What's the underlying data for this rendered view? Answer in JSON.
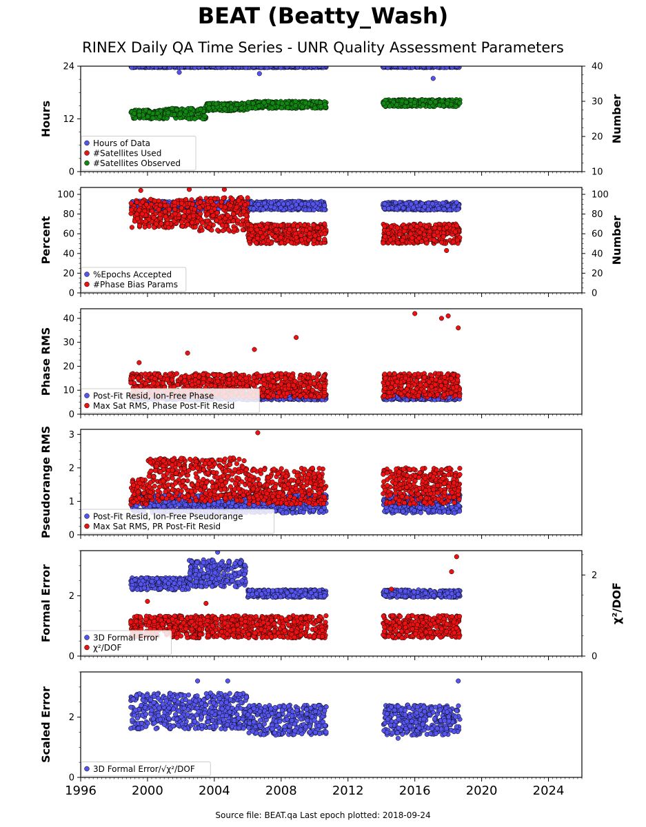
{
  "header": {
    "title": "BEAT (Beatty_Wash)",
    "subtitle": "RINEX Daily QA Time Series - UNR Quality Assessment Parameters"
  },
  "footer": {
    "text": "Source file: BEAT.qa Last epoch plotted: 2018-09-24"
  },
  "colors": {
    "blue": "#5555ee",
    "red": "#ee1111",
    "green": "#118811",
    "edge": "#000000"
  },
  "chart_data": [
    {
      "type": "scatter",
      "ylabel": "Hours",
      "ylabel_right": "Number",
      "ylim": [
        0,
        24
      ],
      "ylim_right": [
        10,
        40
      ],
      "yticks": [
        "0",
        "12",
        "24"
      ],
      "yticks_right": [
        "10",
        "20",
        "30",
        "40"
      ],
      "xlim": [
        1996,
        2026
      ],
      "legend_position": "lower-left",
      "series": [
        {
          "name": "Hours of Data",
          "color": "blue",
          "axis": "left",
          "segments": [
            {
              "x": [
                1999.0,
                2010.7
              ],
              "y": [
                23.7,
                24.0
              ]
            },
            {
              "x": [
                2014.1,
                2018.7
              ],
              "y": [
                23.7,
                24.0
              ]
            }
          ],
          "outliers": [
            {
              "x": 2001.9,
              "y": 22.6
            },
            {
              "x": 2006.7,
              "y": 22.3
            },
            {
              "x": 2017.1,
              "y": 21.2
            }
          ]
        },
        {
          "name": "#Satellites Used",
          "color": "red",
          "axis": "left",
          "segments": [],
          "outliers": []
        },
        {
          "name": "#Satellites Observed",
          "color": "green",
          "axis": "right",
          "segments": [
            {
              "x": [
                1999.0,
                2001.0
              ],
              "y": [
                25.0,
                27.5
              ]
            },
            {
              "x": [
                2001.0,
                2003.5
              ],
              "y": [
                25.0,
                28.0
              ]
            },
            {
              "x": [
                2003.5,
                2006.0
              ],
              "y": [
                27.3,
                29.5
              ]
            },
            {
              "x": [
                2006.0,
                2010.7
              ],
              "y": [
                28.0,
                30.0
              ]
            },
            {
              "x": [
                2014.1,
                2018.7
              ],
              "y": [
                28.5,
                30.5
              ]
            }
          ],
          "outliers": []
        }
      ]
    },
    {
      "type": "scatter",
      "ylabel": "Percent",
      "ylabel_right": "Number",
      "ylim": [
        0,
        107
      ],
      "ylim_right": [
        0,
        107
      ],
      "yticks": [
        "0",
        "20",
        "40",
        "60",
        "80",
        "100"
      ],
      "yticks_right": [
        "0",
        "20",
        "40",
        "60",
        "80",
        "100"
      ],
      "xlim": [
        1996,
        2026
      ],
      "legend_position": "lower-left",
      "series": [
        {
          "name": "%Epochs Accepted",
          "color": "blue",
          "axis": "left",
          "segments": [
            {
              "x": [
                1999.0,
                2010.7
              ],
              "y": [
                84,
                93
              ]
            },
            {
              "x": [
                2014.1,
                2018.7
              ],
              "y": [
                84,
                92
              ]
            }
          ],
          "outliers": []
        },
        {
          "name": "#Phase Bias Params",
          "color": "red",
          "axis": "right",
          "segments": [
            {
              "x": [
                1999.0,
                2003.0
              ],
              "y": [
                66,
                95
              ]
            },
            {
              "x": [
                2003.0,
                2006.0
              ],
              "y": [
                62,
                97
              ]
            },
            {
              "x": [
                2006.0,
                2010.7
              ],
              "y": [
                50,
                70
              ]
            },
            {
              "x": [
                2014.1,
                2018.7
              ],
              "y": [
                50,
                70
              ]
            }
          ],
          "outliers": [
            {
              "x": 1999.6,
              "y": 104
            },
            {
              "x": 2002.5,
              "y": 105
            },
            {
              "x": 2004.6,
              "y": 105
            },
            {
              "x": 2017.9,
              "y": 43
            }
          ]
        }
      ]
    },
    {
      "type": "scatter",
      "ylabel": "Phase RMS",
      "ylim": [
        0,
        44
      ],
      "yticks": [
        "0",
        "10",
        "20",
        "30",
        "40"
      ],
      "xlim": [
        1996,
        2026
      ],
      "legend_position": "lower-left",
      "series": [
        {
          "name": "Post-Fit Resid, Ion-Free Phase",
          "color": "blue",
          "axis": "left",
          "segments": [
            {
              "x": [
                1999.0,
                2010.7
              ],
              "y": [
                6.0,
                8.5
              ]
            },
            {
              "x": [
                2014.1,
                2018.7
              ],
              "y": [
                6.0,
                8.5
              ]
            }
          ],
          "outliers": []
        },
        {
          "name": "Max Sat RMS, Phase Post-Fit Resid",
          "color": "red",
          "axis": "left",
          "segments": [
            {
              "x": [
                1999.0,
                2010.7
              ],
              "y": [
                7.0,
                17.0
              ]
            },
            {
              "x": [
                2014.1,
                2018.7
              ],
              "y": [
                7.0,
                17.0
              ]
            }
          ],
          "outliers": [
            {
              "x": 1999.5,
              "y": 21.5
            },
            {
              "x": 2002.4,
              "y": 25.5
            },
            {
              "x": 2006.4,
              "y": 27.0
            },
            {
              "x": 2008.9,
              "y": 32.0
            },
            {
              "x": 2016.0,
              "y": 42.0
            },
            {
              "x": 2017.6,
              "y": 40.0
            },
            {
              "x": 2018.0,
              "y": 41.0
            },
            {
              "x": 2018.6,
              "y": 36.0
            }
          ]
        }
      ]
    },
    {
      "type": "scatter",
      "ylabel": "Pseudorange RMS",
      "ylim": [
        0,
        3.15
      ],
      "yticks": [
        "0",
        "1",
        "2",
        "3"
      ],
      "xlim": [
        1996,
        2026
      ],
      "legend_position": "lower-left",
      "series": [
        {
          "name": "Post-Fit Resid, Ion-Free Pseudorange",
          "color": "blue",
          "axis": "left",
          "segments": [
            {
              "x": [
                1999.0,
                2010.7
              ],
              "y": [
                0.65,
                1.2
              ]
            },
            {
              "x": [
                2014.1,
                2018.7
              ],
              "y": [
                0.65,
                1.2
              ]
            }
          ],
          "outliers": []
        },
        {
          "name": "Max Sat RMS, PR Post-Fit Resid",
          "color": "red",
          "axis": "left",
          "segments": [
            {
              "x": [
                1999.0,
                2000.0
              ],
              "y": [
                0.9,
                1.7
              ]
            },
            {
              "x": [
                2000.0,
                2006.0
              ],
              "y": [
                1.0,
                2.3
              ]
            },
            {
              "x": [
                2006.0,
                2010.7
              ],
              "y": [
                0.9,
                2.0
              ]
            },
            {
              "x": [
                2014.1,
                2018.7
              ],
              "y": [
                0.9,
                2.0
              ]
            }
          ],
          "outliers": [
            {
              "x": 2006.6,
              "y": 3.05
            }
          ]
        }
      ]
    },
    {
      "type": "scatter",
      "ylabel": "Formal Error",
      "ylabel_right": "χ²/DOF",
      "ylim": [
        0,
        3.5
      ],
      "ylim_right": [
        0,
        2.6
      ],
      "yticks": [
        "0",
        "2"
      ],
      "yticks_right": [
        "0",
        "2"
      ],
      "xlim": [
        1996,
        2026
      ],
      "legend_position": "lower-left",
      "series": [
        {
          "name": "3D Formal Error",
          "color": "blue",
          "axis": "left",
          "segments": [
            {
              "x": [
                1999.0,
                2002.5
              ],
              "y": [
                2.2,
                2.6
              ]
            },
            {
              "x": [
                2002.5,
                2005.9
              ],
              "y": [
                2.3,
                3.2
              ]
            },
            {
              "x": [
                2006.0,
                2010.7
              ],
              "y": [
                1.95,
                2.2
              ]
            },
            {
              "x": [
                2014.1,
                2018.7
              ],
              "y": [
                1.95,
                2.2
              ]
            }
          ],
          "outliers": [
            {
              "x": 2004.2,
              "y": 3.45
            }
          ]
        },
        {
          "name": "χ²/DOF",
          "color": "red",
          "axis": "right",
          "segments": [
            {
              "x": [
                1999.0,
                2010.7
              ],
              "y": [
                0.45,
                1.0
              ]
            },
            {
              "x": [
                2014.1,
                2018.7
              ],
              "y": [
                0.45,
                1.0
              ]
            }
          ],
          "outliers": [
            {
              "x": 2018.5,
              "y": 2.45
            },
            {
              "x": 2018.2,
              "y": 2.08
            },
            {
              "x": 2014.6,
              "y": 1.65
            },
            {
              "x": 2000.0,
              "y": 1.35
            },
            {
              "x": 2003.5,
              "y": 1.3
            }
          ]
        }
      ]
    },
    {
      "type": "scatter",
      "ylabel": "Scaled Error",
      "ylim": [
        0,
        3.5
      ],
      "yticks": [
        "0",
        "2"
      ],
      "xlim": [
        1996,
        2026
      ],
      "legend_position": "lower-left",
      "series": [
        {
          "name": "3D Formal Error/√χ²/DOF",
          "color": "blue",
          "axis": "left",
          "segments": [
            {
              "x": [
                1999.0,
                2006.0
              ],
              "y": [
                1.6,
                2.8
              ]
            },
            {
              "x": [
                2006.0,
                2010.7
              ],
              "y": [
                1.4,
                2.4
              ]
            },
            {
              "x": [
                2014.1,
                2018.7
              ],
              "y": [
                1.4,
                2.4
              ]
            }
          ],
          "outliers": [
            {
              "x": 2003.0,
              "y": 3.2
            },
            {
              "x": 2004.8,
              "y": 3.2
            },
            {
              "x": 2018.6,
              "y": 3.2
            },
            {
              "x": 2015.0,
              "y": 1.3
            }
          ]
        }
      ]
    }
  ],
  "x_axis": {
    "tick_labels": [
      "1996",
      "2000",
      "2004",
      "2008",
      "2012",
      "2016",
      "2020",
      "2024"
    ],
    "tick_values": [
      1996,
      2000,
      2004,
      2008,
      2012,
      2016,
      2020,
      2024
    ]
  }
}
